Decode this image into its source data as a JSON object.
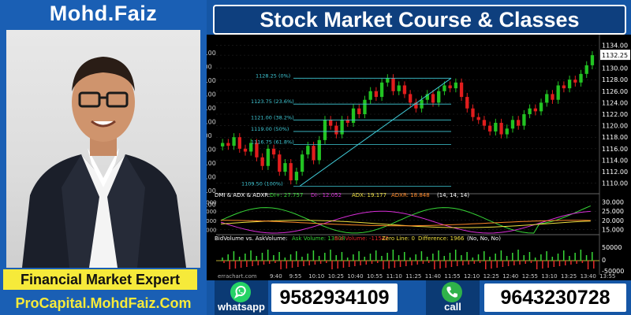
{
  "profile": {
    "name": "Mohd.Faiz",
    "role": "Financial Market Expert",
    "website": "ProCapital.MohdFaiz.Com"
  },
  "header": {
    "title": "Stock Market Course & Classes"
  },
  "contacts": {
    "whatsapp_label": "whatsapp",
    "whatsapp_number": "9582934109",
    "call_label": "call",
    "call_number": "9643230728"
  },
  "chart": {
    "price_axis": [
      "1134.00",
      "1132.25",
      "1130.00",
      "1128.00",
      "1126.00",
      "1124.00",
      "1122.00",
      "1120.00",
      "1118.00",
      "1116.00",
      "1114.00",
      "1112.00",
      "1110.00"
    ],
    "left_axis_partial": [
      "2.00",
      ".00",
      "3.00",
      "3.00",
      "4.00",
      "2.00",
      ".00",
      "3.00",
      "3.00",
      "4.00",
      "2.00",
      "1.00"
    ],
    "fib_levels": [
      "1128.25 (0%)",
      "1123.75 (23.6%)",
      "1121.00 (38.2%)",
      "1119.00 (50%)",
      "1116.75 (61.8%)",
      "1109.50 (100%)"
    ],
    "dmi_label": "DMI & ADX & ADXR:",
    "dmi_values": [
      {
        "text": "DI+: 27.757",
        "color": "#37d637"
      },
      {
        "text": "DI-: 12.052",
        "color": "#d92ed9"
      },
      {
        "text": "ADX: 19.177",
        "color": "#f0e040"
      },
      {
        "text": "ADXR: 18.848",
        "color": "#ff8a2a"
      },
      {
        "text": "(14, 14, 14)",
        "color": "#ffffff"
      }
    ],
    "dmi_axis": [
      "30.000",
      "25.000",
      "20.000",
      "15.000"
    ],
    "dmi_axis_left": [
      "30.000",
      "25.000",
      "20.000",
      "15.000"
    ],
    "vol_label": "BidVolume vs. AskVolume:",
    "vol_values": [
      {
        "text": "Ask Volume: 13508",
        "color": "#37d637"
      },
      {
        "text": "Bid Volume: -11542",
        "color": "#e52a2a"
      },
      {
        "text": "Zero Line: 0",
        "color": "#f0e040"
      },
      {
        "text": "Difference: 1966",
        "color": "#f0e040"
      },
      {
        "text": "(No, No, No)",
        "color": "#ffffff"
      }
    ],
    "vol_axis": [
      "50000",
      "0",
      "-50000"
    ],
    "time_labels": [
      "9:40",
      "9:55",
      "10:10",
      "10:25",
      "10:40",
      "10:55",
      "11:10",
      "11:25",
      "11:40",
      "11:55",
      "12:10",
      "12:25",
      "12:40",
      "12:55",
      "13:10",
      "13:25",
      "13:40",
      "13:55"
    ],
    "watermark": "errachart.com",
    "price_series": [
      1117,
      1116.5,
      1118,
      1116,
      1115.5,
      1117,
      1114.5,
      1113,
      1116,
      1115,
      1112,
      1113.5,
      1110.5,
      1112,
      1115,
      1116.5,
      1114,
      1117.5,
      1121,
      1120,
      1118.5,
      1121,
      1120.5,
      1123,
      1122,
      1124.5,
      1126,
      1125,
      1127.5,
      1128.25,
      1126,
      1127,
      1125.5,
      1124,
      1123,
      1124.5,
      1125.5,
      1124,
      1126,
      1127,
      1126.5,
      1127.5,
      1125,
      1123,
      1121.5,
      1121,
      1120,
      1119,
      1120.5,
      1118.5,
      1119.5,
      1121,
      1120,
      1122,
      1123,
      1122.5,
      1124,
      1125.5,
      1124.5,
      1127,
      1126.5,
      1128,
      1127.5,
      1129,
      1130.5,
      1132.25
    ],
    "colors": {
      "up": "#22c322",
      "down": "#e11d1d",
      "fib": "#3fc9d6",
      "bg": "#000000",
      "grid": "#2b2b2b"
    }
  }
}
